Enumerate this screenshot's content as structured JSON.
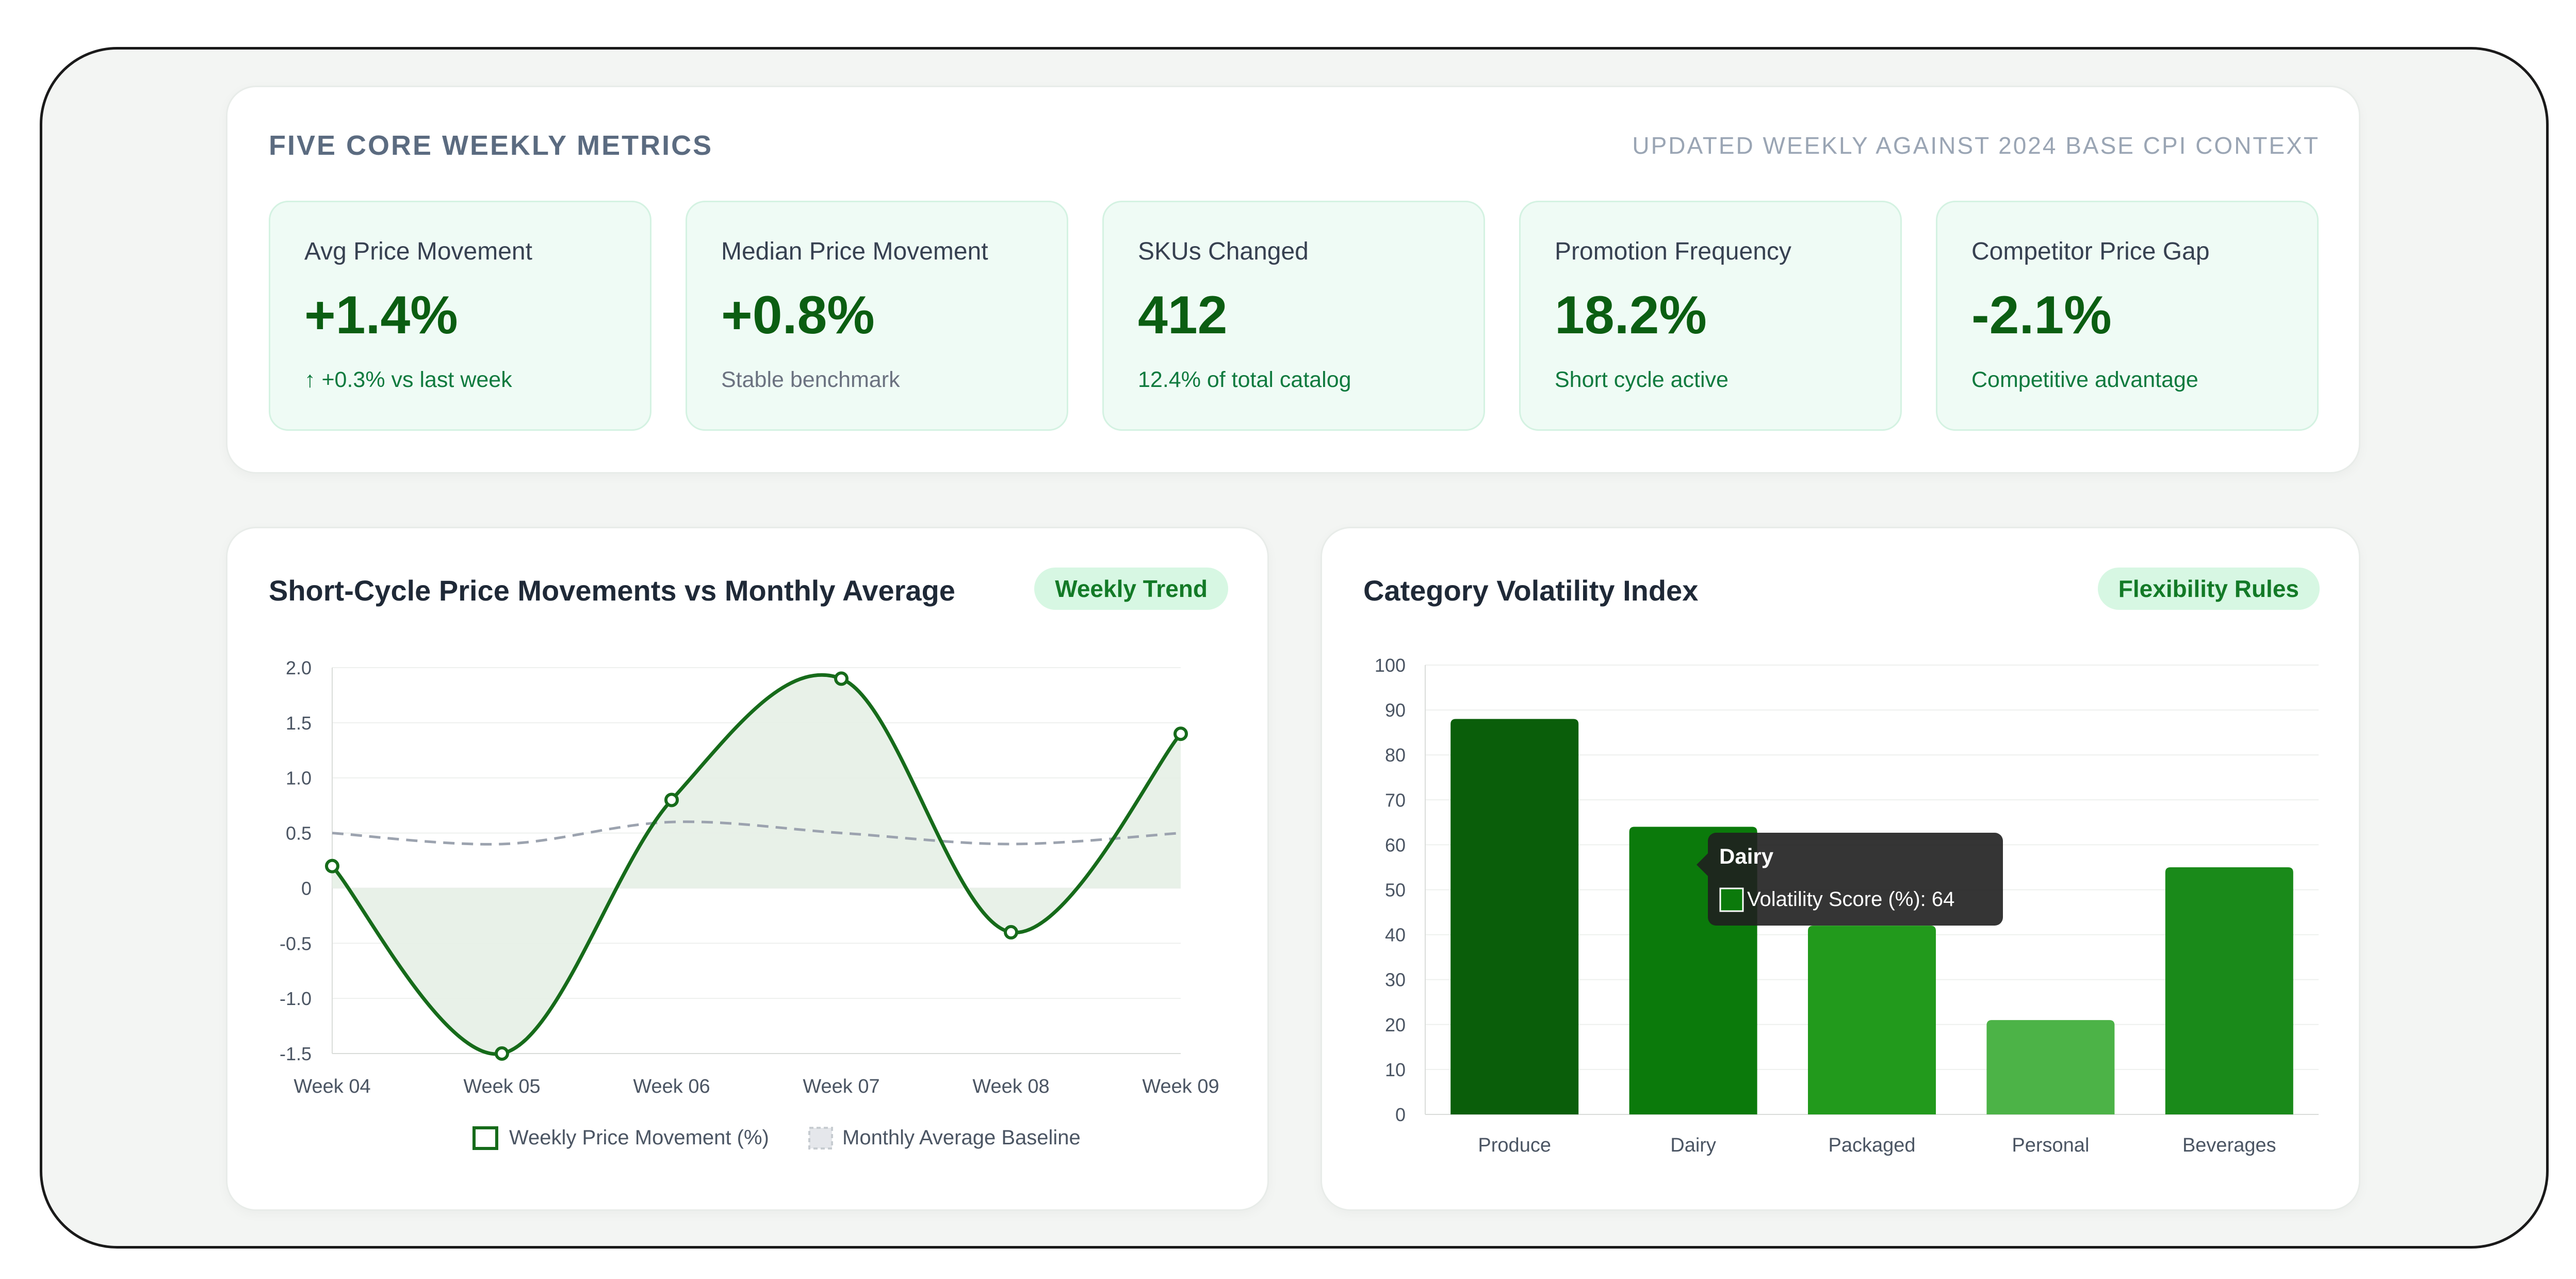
{
  "metrics": {
    "title": "FIVE CORE WEEKLY METRICS",
    "note": "UPDATED WEEKLY AGAINST 2024 BASE CPI CONTEXT",
    "items": [
      {
        "label": "Avg Price Movement",
        "value": "+1.4%",
        "sub": "↑ +0.3% vs last week"
      },
      {
        "label": "Median Price Movement",
        "value": "+0.8%",
        "sub": "Stable benchmark"
      },
      {
        "label": "SKUs Changed",
        "value": "412",
        "sub": "12.4% of total catalog"
      },
      {
        "label": "Promotion Frequency",
        "value": "18.2%",
        "sub": "Short cycle active"
      },
      {
        "label": "Competitor Price Gap",
        "value": "-2.1%",
        "sub": "Competitive advantage"
      }
    ]
  },
  "line_panel": {
    "title": "Short-Cycle Price Movements vs Monthly Average",
    "badge": "Weekly Trend"
  },
  "bar_panel": {
    "title": "Category Volatility Index",
    "badge": "Flexibility Rules",
    "tooltip": {
      "title": "Dairy",
      "text": "Volatility Score (%): 64"
    }
  },
  "colors": {
    "line": "#166b1a",
    "baseline": "#9ca3af",
    "fill": "#e6efe6",
    "bars": [
      "#0a5e0a",
      "#0b7a0b",
      "#229a1c",
      "#4cb347",
      "#1a8a1a"
    ]
  },
  "chart_data": [
    {
      "type": "line",
      "categories": [
        "Week 04",
        "Week 05",
        "Week 06",
        "Week 07",
        "Week 08",
        "Week 09"
      ],
      "series": [
        {
          "name": "Weekly Price Movement (%)",
          "values": [
            0.2,
            -1.5,
            0.8,
            1.9,
            -0.4,
            1.4
          ]
        },
        {
          "name": "Monthly Average Baseline",
          "values": [
            0.5,
            0.4,
            0.6,
            0.5,
            0.4,
            0.5
          ]
        }
      ],
      "yticks": [
        "2.0",
        "1.5",
        "1.0",
        "0.5",
        "0",
        "-0.5",
        "-1.0",
        "-1.5"
      ],
      "ylim": [
        -1.5,
        2.0
      ],
      "grid": true,
      "legend": "bottom"
    },
    {
      "type": "bar",
      "categories": [
        "Produce",
        "Dairy",
        "Packaged",
        "Personal",
        "Beverages"
      ],
      "series": [
        {
          "name": "Volatility Score (%)",
          "values": [
            88,
            64,
            42,
            21,
            55
          ]
        }
      ],
      "yticks": [
        "100",
        "90",
        "80",
        "70",
        "60",
        "50",
        "40",
        "30",
        "20",
        "10",
        "0"
      ],
      "ylim": [
        0,
        100
      ],
      "grid": true,
      "legend": "none"
    }
  ]
}
